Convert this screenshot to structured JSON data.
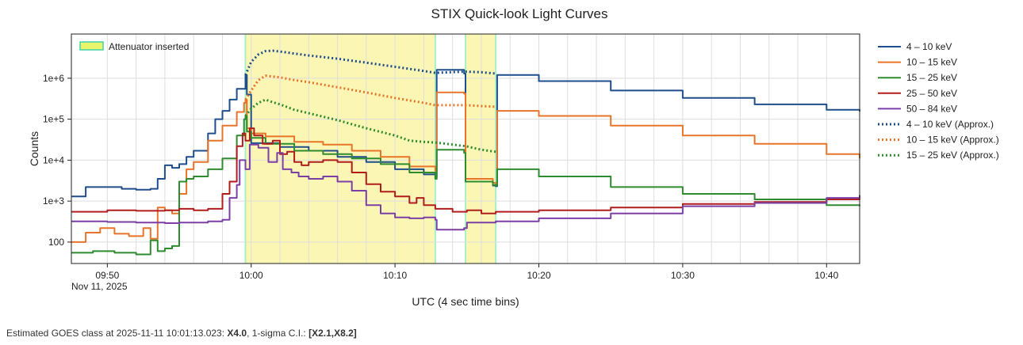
{
  "chart_data": {
    "type": "line",
    "title": "STIX Quick-look Light Curves",
    "xlabel": "UTC (4 sec time bins)",
    "ylabel": "Counts",
    "yscale": "log",
    "ylim": [
      30,
      12000000
    ],
    "xlim_minutes": [
      -12.5,
      42.3
    ],
    "x_unit": "minutes relative to 10:00 UTC",
    "x_ticks": [
      {
        "label": "09:50",
        "x": -10
      },
      {
        "label": "10:00",
        "x": 0
      },
      {
        "label": "10:10",
        "x": 10
      },
      {
        "label": "10:20",
        "x": 20
      },
      {
        "label": "10:30",
        "x": 30
      },
      {
        "label": "10:40",
        "x": 40
      }
    ],
    "date_label": "Nov 11, 2025",
    "y_ticks": [
      {
        "label": "100",
        "value": 100
      },
      {
        "label": "1e+3",
        "value": 1000
      },
      {
        "label": "1e+4",
        "value": 10000
      },
      {
        "label": "1e+5",
        "value": 100000
      },
      {
        "label": "1e+6",
        "value": 1000000
      }
    ],
    "attenuator": {
      "label": "Attenuator inserted",
      "color": "#fbf6b4",
      "edge_color": "#a9f0c7",
      "intervals": [
        [
          -0.4,
          12.8
        ],
        [
          14.9,
          17.0
        ]
      ]
    },
    "series": [
      {
        "name": "4 – 10 keV",
        "color": "#1f4e8c",
        "dash": false,
        "x": [
          -12.5,
          -11.5,
          -10.5,
          -9,
          -8,
          -7,
          -6.5,
          -6,
          -5.5,
          -5,
          -4.5,
          -4,
          -3,
          -2.5,
          -2,
          -1.5,
          -1,
          -0.4,
          -0.3,
          0,
          2,
          4,
          6,
          8,
          10,
          12,
          12.8,
          12.9,
          14.8,
          14.9,
          16.8,
          17,
          17.1,
          20,
          25,
          30,
          35,
          40,
          42.3
        ],
        "values": [
          1300,
          2200,
          2200,
          2000,
          1900,
          2000,
          3500,
          7500,
          6500,
          8000,
          12000,
          17000,
          45000,
          100000,
          160000,
          300000,
          550000,
          1200000,
          400000,
          26000,
          21000,
          17000,
          12000,
          9000,
          6000,
          4500,
          3800,
          1600000,
          1300000,
          3000,
          2400,
          2300,
          1200000,
          850000,
          500000,
          330000,
          230000,
          170000,
          155000
        ]
      },
      {
        "name": "10 – 15 keV",
        "color": "#e8742a",
        "dash": false,
        "x": [
          -12.5,
          -11.5,
          -10.5,
          -9.5,
          -8.5,
          -7.5,
          -7,
          -6.5,
          -6,
          -5.5,
          -5,
          -4.5,
          -4,
          -3,
          -2,
          -1,
          -0.5,
          -0.4,
          -0.3,
          0,
          1,
          3,
          5,
          7,
          9,
          11,
          12.8,
          12.9,
          14.8,
          14.9,
          16.8,
          17,
          17.1,
          20,
          25,
          30,
          35,
          40,
          42.3
        ],
        "values": [
          100,
          170,
          220,
          160,
          140,
          220,
          120,
          700,
          600,
          500,
          1500,
          6000,
          9000,
          30000,
          70000,
          150000,
          250000,
          300000,
          60000,
          45000,
          38000,
          28000,
          24000,
          17000,
          12000,
          7000,
          5500,
          450000,
          420000,
          3500,
          2800,
          2700,
          160000,
          120000,
          70000,
          40000,
          25000,
          14000,
          11000
        ]
      },
      {
        "name": "15 – 25 keV",
        "color": "#2e8b2e",
        "dash": false,
        "x": [
          -12.5,
          -11,
          -9.5,
          -8,
          -7,
          -6.5,
          -6,
          -5.5,
          -5,
          -4.5,
          -4,
          -3,
          -2,
          -1,
          -0.5,
          -0.4,
          -0.3,
          0,
          1,
          3,
          5,
          7,
          9,
          11,
          12.8,
          12.9,
          14.8,
          14.9,
          16.8,
          17,
          17.1,
          20,
          25,
          30,
          35,
          40,
          42.3
        ],
        "values": [
          55,
          60,
          55,
          50,
          110,
          60,
          70,
          80,
          3000,
          3500,
          4000,
          6000,
          11000,
          40000,
          100000,
          120000,
          50000,
          35000,
          25000,
          17000,
          14000,
          11000,
          8000,
          5000,
          3500,
          18000,
          15000,
          3000,
          2500,
          2400,
          6000,
          4000,
          2200,
          1500,
          1100,
          800,
          750
        ]
      },
      {
        "name": "25 – 50 keV",
        "color": "#b11d1d",
        "dash": false,
        "x": [
          -12.5,
          -10,
          -8,
          -6,
          -5,
          -4,
          -3,
          -2,
          -1.5,
          -1,
          -0.6,
          -0.4,
          -0.1,
          0.2,
          0.8,
          1.5,
          2,
          2.5,
          3,
          3.5,
          4,
          5,
          6,
          7,
          8,
          9,
          10,
          11,
          11.5,
          12,
          12.8,
          14,
          15,
          16,
          17,
          20,
          25,
          30,
          35,
          40,
          42.3
        ],
        "values": [
          550,
          600,
          580,
          600,
          650,
          600,
          650,
          1500,
          3000,
          22000,
          45000,
          30000,
          60000,
          40000,
          25000,
          30000,
          14000,
          16000,
          9000,
          7500,
          9000,
          10000,
          9000,
          5000,
          2600,
          1700,
          1300,
          900,
          1200,
          800,
          650,
          550,
          600,
          500,
          550,
          600,
          700,
          850,
          950,
          1100,
          1150
        ]
      },
      {
        "name": "50 – 84 keV",
        "color": "#7b3fa6",
        "dash": false,
        "x": [
          -12.5,
          -10,
          -8,
          -6,
          -5,
          -4,
          -3,
          -2,
          -1.5,
          -1,
          -0.8,
          -0.4,
          -0.1,
          0.5,
          1.2,
          1.8,
          2.2,
          2.8,
          3.3,
          4,
          5,
          6,
          7,
          8,
          9,
          10,
          11,
          12,
          12.8,
          12.9,
          14.8,
          15,
          17,
          20,
          25,
          30,
          35,
          40,
          42.3
        ],
        "values": [
          320,
          310,
          300,
          290,
          300,
          300,
          320,
          350,
          1200,
          2500,
          10000,
          6000,
          24000,
          20000,
          9000,
          15000,
          6000,
          5000,
          4000,
          3500,
          4000,
          3000,
          1800,
          800,
          500,
          400,
          380,
          400,
          350,
          200,
          220,
          300,
          320,
          380,
          500,
          750,
          900,
          1200,
          1400
        ]
      },
      {
        "name": "4 – 10 keV (Approx.)",
        "color": "#1f4e8c",
        "dash": true,
        "x": [
          -0.4,
          0,
          0.5,
          1,
          1.5,
          2,
          3,
          4,
          6,
          8,
          10,
          12,
          12.8,
          14.9,
          16,
          17
        ],
        "values": [
          1200000,
          2500000,
          3800000,
          4600000,
          4700000,
          4500000,
          4000000,
          3600000,
          3000000,
          2400000,
          1900000,
          1500000,
          1350000,
          1450000,
          1400000,
          1300000
        ]
      },
      {
        "name": "10 – 15 keV (Approx.)",
        "color": "#e8742a",
        "dash": true,
        "x": [
          -0.4,
          0,
          0.5,
          1,
          1.5,
          2,
          3,
          4,
          6,
          8,
          10,
          12,
          12.8,
          14.9,
          16,
          17
        ],
        "values": [
          300000,
          500000,
          900000,
          1150000,
          1100000,
          1050000,
          900000,
          800000,
          600000,
          450000,
          330000,
          250000,
          220000,
          220000,
          210000,
          200000
        ]
      },
      {
        "name": "15 – 25 keV (Approx.)",
        "color": "#2e8b2e",
        "dash": true,
        "x": [
          -0.4,
          0,
          0.5,
          1,
          1.5,
          2,
          3,
          4,
          6,
          8,
          10,
          11,
          12,
          12.8,
          14.9,
          16,
          17
        ],
        "values": [
          120000,
          180000,
          250000,
          300000,
          260000,
          230000,
          170000,
          140000,
          95000,
          60000,
          40000,
          30000,
          28000,
          27000,
          22000,
          18000,
          16000
        ]
      }
    ]
  },
  "goes": {
    "prefix": "Estimated GOES class at 2025-11-11 10:01:13.023: ",
    "class": "X4.0",
    "mid": ", 1-sigma C.I.: ",
    "ci": "[X2.1,X8.2]"
  }
}
